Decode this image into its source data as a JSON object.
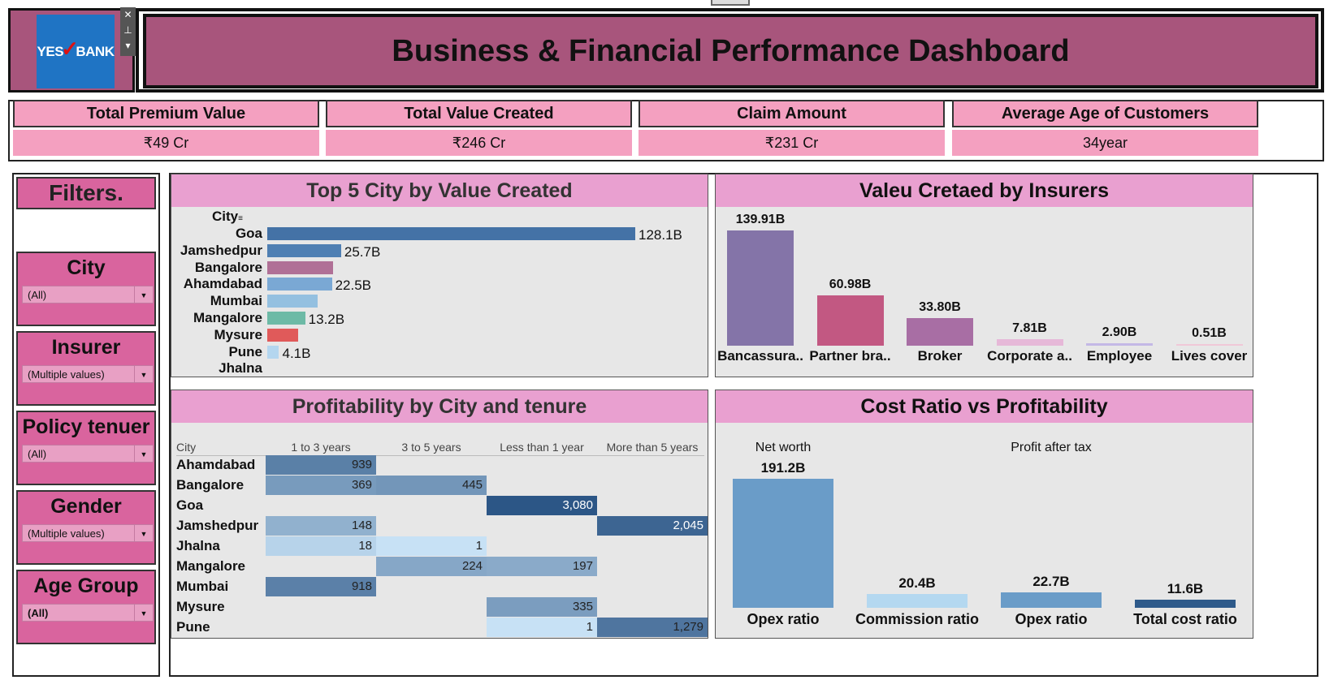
{
  "header": {
    "logo_text_left": "YES",
    "logo_text_right": "BANK",
    "title": "Business & Financial Performance Dashboard"
  },
  "kpis": [
    {
      "title": "Total Premium Value",
      "value": "₹49 Cr"
    },
    {
      "title": "Total Value Created",
      "value": "₹246 Cr"
    },
    {
      "title": "Claim Amount",
      "value": "₹231 Cr"
    },
    {
      "title": "Average Age of Customers",
      "value": "34year"
    }
  ],
  "filters": {
    "title": "Filters.",
    "items": [
      {
        "label": "City",
        "value": "(All)"
      },
      {
        "label": "Insurer",
        "value": "(Multiple values)"
      },
      {
        "label": "Policy tenuer",
        "value": "(All)"
      },
      {
        "label": "Gender",
        "value": "(Multiple values)"
      },
      {
        "label": "Age Group",
        "value": "(All)"
      }
    ]
  },
  "colors": {
    "header_bg": "#a8557c",
    "kpi_bg": "#f4a0c0",
    "filter_bg": "#d9649e",
    "panel_head": "#e9a0d0"
  },
  "chart_data": [
    {
      "type": "bar",
      "title": "Top 5 City by Value Created",
      "axis_header": "City",
      "categories": [
        "Goa",
        "Jamshedpur",
        "Bangalore",
        "Ahamdabad",
        "Mumbai",
        "Mangalore",
        "Mysure",
        "Pune",
        "Jhalna"
      ],
      "values": [
        128.1,
        25.7,
        22.9,
        22.5,
        17.5,
        13.2,
        10.8,
        4.1,
        0
      ],
      "labels": [
        "128.1B",
        "25.7B",
        "",
        "22.5B",
        "",
        "13.2B",
        "",
        "4.1B",
        ""
      ],
      "colors": [
        "#4472a6",
        "#4f7fb3",
        "#b07096",
        "#7aa8d4",
        "#94c0e0",
        "#6dbaa6",
        "#e05a5a",
        "#b4d6ef",
        "#cccccc"
      ],
      "unit": "B"
    },
    {
      "type": "bar",
      "title": "Valeu Cretaed by Insurers",
      "categories": [
        "Bancassura..",
        "Partner bra..",
        "Broker",
        "Corporate a..",
        "Employee",
        "Lives cover"
      ],
      "values": [
        139.91,
        60.98,
        33.8,
        7.81,
        2.9,
        0.51
      ],
      "labels": [
        "139.91B",
        "60.98B",
        "33.80B",
        "7.81B",
        "2.90B",
        "0.51B"
      ],
      "colors": [
        "#8474a8",
        "#c25882",
        "#a86ea4",
        "#e6b8d8",
        "#c4b8e6",
        "#f0c8d8"
      ]
    },
    {
      "type": "heatmap",
      "title": "Profitability by City and tenure",
      "row_header": "City",
      "columns": [
        "1 to 3 years",
        "3 to 5 years",
        "Less than 1 year",
        "More than 5 years"
      ],
      "rows": [
        {
          "city": "Ahamdabad",
          "values": [
            939,
            null,
            null,
            null
          ]
        },
        {
          "city": "Bangalore",
          "values": [
            369,
            445,
            null,
            null
          ]
        },
        {
          "city": "Goa",
          "values": [
            null,
            null,
            3080,
            null
          ]
        },
        {
          "city": "Jamshedpur",
          "values": [
            148,
            null,
            null,
            2045
          ]
        },
        {
          "city": "Jhalna",
          "values": [
            18,
            1,
            null,
            null
          ]
        },
        {
          "city": "Mangalore",
          "values": [
            null,
            224,
            197,
            null
          ]
        },
        {
          "city": "Mumbai",
          "values": [
            918,
            null,
            null,
            null
          ]
        },
        {
          "city": "Mysure",
          "values": [
            null,
            null,
            335,
            null
          ]
        },
        {
          "city": "Pune",
          "values": [
            null,
            null,
            1,
            1279
          ]
        }
      ],
      "display": [
        [
          "939",
          "",
          "",
          ""
        ],
        [
          "369",
          "445",
          "",
          ""
        ],
        [
          "",
          "",
          "3,080",
          ""
        ],
        [
          "148",
          "",
          "",
          "2,045"
        ],
        [
          "18",
          "1",
          "",
          ""
        ],
        [
          "",
          "224",
          "197",
          ""
        ],
        [
          "918",
          "",
          "",
          ""
        ],
        [
          "",
          "",
          "335",
          ""
        ],
        [
          "",
          "",
          "1",
          "1,279"
        ]
      ]
    },
    {
      "type": "bar",
      "title": "Cost Ratio vs Profitability",
      "groups": [
        "Net worth",
        "Profit after tax"
      ],
      "categories": [
        "Opex ratio",
        "Commission ratio",
        "Opex ratio",
        "Total cost ratio"
      ],
      "values": [
        191.2,
        20.4,
        22.7,
        11.6
      ],
      "labels": [
        "191.2B",
        "20.4B",
        "22.7B",
        "11.6B"
      ],
      "colors": [
        "#6a9cc8",
        "#b4d8f0",
        "#6a9cc8",
        "#2e5a8a"
      ]
    }
  ]
}
